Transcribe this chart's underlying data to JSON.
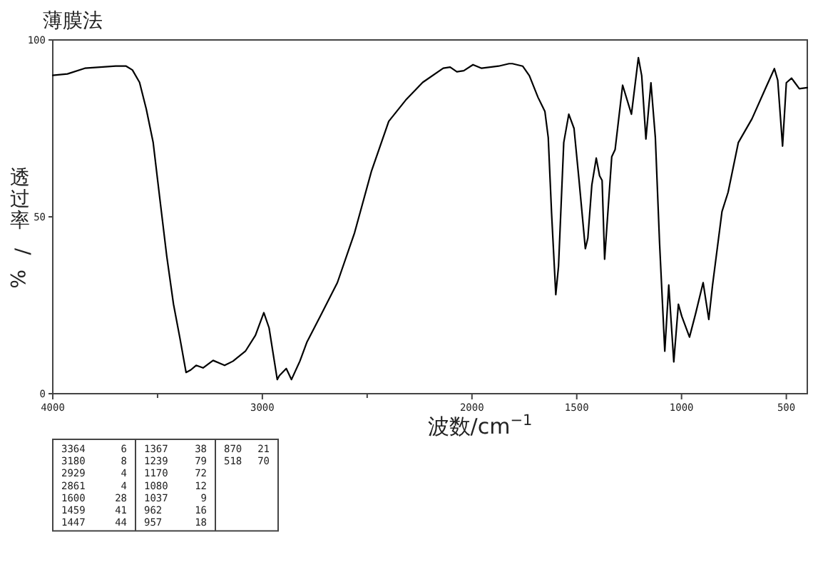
{
  "chart_data": {
    "type": "line",
    "title": "薄膜法",
    "xlabel": "波数/cm$^{−1}$",
    "ylabel": "透过率/%",
    "xlim": [
      4000,
      400
    ],
    "ylim": [
      0,
      100
    ],
    "xticks": [
      4000,
      {
        "value": 3500,
        "label": null
      },
      3000,
      {
        "value": 2500,
        "label": null
      },
      2000,
      1500,
      1000,
      500
    ],
    "yticks": [
      0,
      50,
      100
    ],
    "grid": false,
    "marker": "none",
    "line_style": "solid",
    "series": [
      {
        "color": "#000000",
        "x": [
          4000,
          3930,
          3847,
          3700,
          3650,
          3620,
          3586,
          3554,
          3521,
          3489,
          3456,
          3424,
          3394,
          3364,
          3342,
          3316,
          3283,
          3235,
          3180,
          3140,
          3081,
          3033,
          2993,
          2968,
          2929,
          2919,
          2886,
          2861,
          2821,
          2788,
          2723,
          2642,
          2560,
          2479,
          2397,
          2316,
          2235,
          2137,
          2104,
          2072,
          2039,
          1995,
          1954,
          1873,
          1823,
          1807,
          1758,
          1726,
          1685,
          1652,
          1636,
          1620,
          1600,
          1587,
          1562,
          1538,
          1513,
          1489,
          1459,
          1447,
          1428,
          1407,
          1391,
          1379,
          1367,
          1333,
          1317,
          1281,
          1239,
          1206,
          1190,
          1170,
          1146,
          1125,
          1105,
          1080,
          1061,
          1037,
          1015,
          999,
          962,
          933,
          897,
          870,
          852,
          807,
          778,
          729,
          664,
          598,
          557,
          541,
          518,
          500,
          475,
          459,
          438,
          400
        ],
        "values": [
          90,
          90.4,
          92,
          92.6,
          92.6,
          91.5,
          88,
          80.5,
          71,
          55,
          38.8,
          25.3,
          15.9,
          6,
          6.7,
          8,
          7.3,
          9.4,
          8,
          9.2,
          12,
          16.5,
          22.9,
          18.6,
          4,
          5.1,
          7.1,
          4,
          9.2,
          14.5,
          22,
          31.4,
          45.5,
          63,
          77,
          83,
          88,
          92,
          92.3,
          91,
          91.3,
          93,
          92,
          92.6,
          93.3,
          93.3,
          92.6,
          89.9,
          83.8,
          79.8,
          72.4,
          50.9,
          28,
          36,
          71,
          79,
          75,
          60.3,
          41,
          44,
          59,
          66.6,
          61.6,
          60.3,
          38,
          67,
          69,
          87.2,
          79,
          95,
          89.9,
          72,
          87.9,
          72.4,
          42.8,
          12,
          30.7,
          9,
          25.3,
          21.9,
          16,
          22.6,
          31.4,
          21,
          30.7,
          51.5,
          56.9,
          71,
          77.7,
          86.5,
          91.9,
          88.6,
          70,
          87.9,
          89.2,
          87.9,
          86.2,
          86.5
        ]
      }
    ],
    "annotations": [
      "3364 6",
      "3180 8",
      "2929 4",
      "2861 4",
      "1600 28",
      "1459 41",
      "1447 44",
      "1367 38",
      "1239 79",
      "1170 72",
      "1080 12",
      "1037 9",
      "962 16",
      "957 18",
      "870 21",
      "518 70"
    ]
  }
}
